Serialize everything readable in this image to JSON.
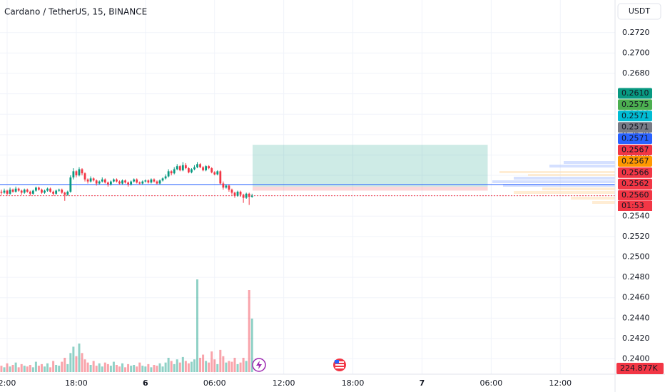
{
  "chart_data": {
    "type": "candlestick",
    "title": "Cardano / TetherUS, 15, BINANCE",
    "currency": "USDT",
    "up_color": "#089981",
    "down_color": "#f23645",
    "xlim": [
      -0.62,
      52.75
    ],
    "xticks": [
      {
        "value": 0,
        "label": "2:00"
      },
      {
        "value": 6,
        "label": "18:00"
      },
      {
        "value": 12,
        "label": "6"
      },
      {
        "value": 18,
        "label": "06:00"
      },
      {
        "value": 24,
        "label": "12:00"
      },
      {
        "value": 30,
        "label": "18:00"
      },
      {
        "value": 36,
        "label": "7"
      },
      {
        "value": 42,
        "label": "06:00"
      },
      {
        "value": 48,
        "label": "12:00"
      }
    ],
    "ylim": [
      0.2385,
      0.2752
    ],
    "yticks": [
      {
        "value": 0.272,
        "label": "0.2720"
      },
      {
        "value": 0.27,
        "label": "0.2700"
      },
      {
        "value": 0.268,
        "label": "0.2680"
      },
      {
        "value": 0.266,
        "label": "0.2660"
      },
      {
        "value": 0.264,
        "label": "0.2640"
      },
      {
        "value": 0.262,
        "label": "0.2620"
      },
      {
        "value": 0.26,
        "label": "0.2600"
      },
      {
        "value": 0.258,
        "label": "0.2580"
      },
      {
        "value": 0.256,
        "label": "0.2560"
      },
      {
        "value": 0.254,
        "label": "0.2540"
      },
      {
        "value": 0.252,
        "label": "0.2520"
      },
      {
        "value": 0.25,
        "label": "0.2500"
      },
      {
        "value": 0.248,
        "label": "0.2480"
      },
      {
        "value": 0.246,
        "label": "0.2460"
      },
      {
        "value": 0.244,
        "label": "0.2440"
      },
      {
        "value": 0.242,
        "label": "0.2420"
      },
      {
        "value": 0.24,
        "label": "0.2400"
      }
    ],
    "grid": true,
    "volume_ylim": [
      0,
      23490
    ],
    "x": [
      -0.5,
      -0.25,
      0,
      0.25,
      0.5,
      0.75,
      1,
      1.25,
      1.5,
      1.75,
      2,
      2.25,
      2.5,
      2.75,
      3,
      3.25,
      3.5,
      3.75,
      4,
      4.25,
      4.5,
      4.75,
      5,
      5.25,
      5.5,
      5.75,
      6,
      6.25,
      6.5,
      6.75,
      7,
      7.25,
      7.5,
      7.75,
      8,
      8.25,
      8.5,
      8.75,
      9,
      9.25,
      9.5,
      9.75,
      10,
      10.25,
      10.5,
      10.75,
      11,
      11.25,
      11.5,
      11.75,
      12,
      12.25,
      12.5,
      12.75,
      13,
      13.25,
      13.5,
      13.75,
      14,
      14.25,
      14.5,
      14.75,
      15,
      15.25,
      15.5,
      15.75,
      16,
      16.25,
      16.5,
      16.75,
      17,
      17.25,
      17.5,
      17.75,
      18,
      18.25,
      18.5,
      18.75,
      19,
      19.25,
      19.5,
      19.75,
      20,
      20.25,
      20.5,
      20.75,
      21,
      21.25
    ],
    "open": [
      0.2564,
      0.2563,
      0.2565,
      0.2562,
      0.2566,
      0.2564,
      0.2567,
      0.2565,
      0.2563,
      0.2566,
      0.2564,
      0.2562,
      0.2565,
      0.2568,
      0.2566,
      0.2563,
      0.2565,
      0.2567,
      0.2564,
      0.2562,
      0.2565,
      0.2566,
      0.2563,
      0.2561,
      0.2564,
      0.2578,
      0.2584,
      0.258,
      0.2586,
      0.2582,
      0.2576,
      0.2574,
      0.2577,
      0.2575,
      0.2572,
      0.2574,
      0.2576,
      0.2573,
      0.2571,
      0.2574,
      0.2576,
      0.2574,
      0.2572,
      0.2575,
      0.2573,
      0.2571,
      0.2574,
      0.2576,
      0.2573,
      0.2572,
      0.2574,
      0.2575,
      0.2573,
      0.2576,
      0.2574,
      0.2572,
      0.2575,
      0.2577,
      0.2579,
      0.2584,
      0.2582,
      0.2586,
      0.2589,
      0.2585,
      0.259,
      0.2587,
      0.2583,
      0.2586,
      0.2588,
      0.2591,
      0.2588,
      0.2585,
      0.2589,
      0.2587,
      0.2583,
      0.2581,
      0.2584,
      0.2572,
      0.2568,
      0.257,
      0.2566,
      0.2563,
      0.256,
      0.2564,
      0.2561,
      0.2558,
      0.2562,
      0.2559
    ],
    "high": [
      0.2566,
      0.2567,
      0.2566,
      0.2568,
      0.2567,
      0.2569,
      0.2568,
      0.2566,
      0.2567,
      0.2567,
      0.2565,
      0.2566,
      0.2569,
      0.2569,
      0.2567,
      0.2566,
      0.2568,
      0.2568,
      0.2565,
      0.2566,
      0.2567,
      0.2567,
      0.2564,
      0.2565,
      0.258,
      0.2587,
      0.2585,
      0.2588,
      0.2587,
      0.2583,
      0.2577,
      0.2579,
      0.2578,
      0.2576,
      0.2575,
      0.2578,
      0.2577,
      0.2574,
      0.2575,
      0.2577,
      0.2577,
      0.2575,
      0.2576,
      0.2576,
      0.2574,
      0.2575,
      0.2577,
      0.2577,
      0.2574,
      0.2575,
      0.2576,
      0.2576,
      0.2577,
      0.2577,
      0.2575,
      0.2576,
      0.2578,
      0.2581,
      0.2586,
      0.2585,
      0.2588,
      0.2591,
      0.259,
      0.2593,
      0.2592,
      0.2588,
      0.2587,
      0.259,
      0.2593,
      0.2592,
      0.2589,
      0.259,
      0.259,
      0.2588,
      0.2584,
      0.2585,
      0.2585,
      0.2574,
      0.2571,
      0.2571,
      0.2567,
      0.2564,
      0.2565,
      0.2565,
      0.2562,
      0.2563,
      0.2563,
      0.2562
    ],
    "low": [
      0.2561,
      0.2562,
      0.256,
      0.2561,
      0.2563,
      0.2563,
      0.2564,
      0.2561,
      0.2562,
      0.2563,
      0.256,
      0.2561,
      0.2564,
      0.2565,
      0.2562,
      0.2562,
      0.2564,
      0.2563,
      0.256,
      0.2561,
      0.2564,
      0.2562,
      0.2555,
      0.256,
      0.2563,
      0.2576,
      0.2578,
      0.2579,
      0.258,
      0.2574,
      0.2572,
      0.2573,
      0.2574,
      0.257,
      0.2571,
      0.2573,
      0.2572,
      0.2569,
      0.257,
      0.2573,
      0.2573,
      0.2571,
      0.2571,
      0.2572,
      0.2569,
      0.257,
      0.2573,
      0.2572,
      0.2571,
      0.2571,
      0.2573,
      0.2572,
      0.2572,
      0.2573,
      0.2571,
      0.2571,
      0.2574,
      0.2576,
      0.2578,
      0.258,
      0.2581,
      0.2585,
      0.2584,
      0.2584,
      0.2586,
      0.2582,
      0.2582,
      0.2585,
      0.2587,
      0.2587,
      0.2584,
      0.2584,
      0.2586,
      0.2582,
      0.258,
      0.258,
      0.2571,
      0.2566,
      0.2567,
      0.2564,
      0.2561,
      0.2558,
      0.2559,
      0.2559,
      0.2553,
      0.2557,
      0.2551,
      0.2558
    ],
    "close": [
      0.2563,
      0.2565,
      0.2562,
      0.2566,
      0.2564,
      0.2567,
      0.2565,
      0.2563,
      0.2566,
      0.2564,
      0.2562,
      0.2565,
      0.2568,
      0.2566,
      0.2563,
      0.2565,
      0.2567,
      0.2564,
      0.2562,
      0.2565,
      0.2566,
      0.2563,
      0.2561,
      0.2564,
      0.2578,
      0.2584,
      0.258,
      0.2586,
      0.2582,
      0.2576,
      0.2574,
      0.2577,
      0.2575,
      0.2572,
      0.2574,
      0.2576,
      0.2573,
      0.2571,
      0.2574,
      0.2576,
      0.2574,
      0.2572,
      0.2575,
      0.2573,
      0.2571,
      0.2574,
      0.2576,
      0.2573,
      0.2572,
      0.2574,
      0.2575,
      0.2573,
      0.2576,
      0.2574,
      0.2572,
      0.2575,
      0.2577,
      0.2579,
      0.2584,
      0.2582,
      0.2586,
      0.2589,
      0.2585,
      0.259,
      0.2587,
      0.2583,
      0.2586,
      0.2588,
      0.2591,
      0.2588,
      0.2585,
      0.2589,
      0.2587,
      0.2583,
      0.2581,
      0.2584,
      0.2572,
      0.2568,
      0.257,
      0.2566,
      0.2563,
      0.256,
      0.2564,
      0.2561,
      0.2558,
      0.2562,
      0.2559,
      0.256
    ],
    "volume": [
      400,
      300,
      550,
      350,
      450,
      600,
      300,
      500,
      400,
      350,
      450,
      300,
      650,
      400,
      500,
      350,
      550,
      300,
      700,
      450,
      400,
      650,
      900,
      500,
      1200,
      1600,
      1000,
      1800,
      1200,
      800,
      600,
      450,
      700,
      400,
      550,
      350,
      600,
      500,
      400,
      650,
      450,
      350,
      550,
      300,
      500,
      400,
      450,
      350,
      600,
      400,
      350,
      500,
      300,
      450,
      400,
      550,
      350,
      600,
      900,
      700,
      500,
      800,
      600,
      950,
      700,
      550,
      650,
      800,
      5850,
      900,
      1100,
      700,
      600,
      1300,
      800,
      500,
      1400,
      1000,
      600,
      700,
      650,
      900,
      500,
      600,
      900,
      700,
      5175,
      3375
    ],
    "volume_label": "224.877K",
    "lines": [
      {
        "price": 0.2571,
        "color": "#2962ff"
      },
      {
        "price": 0.256,
        "color": "#f23645"
      }
    ],
    "position": {
      "target": 0.261,
      "entry": 0.2569,
      "stop": 0.2565,
      "x_start": 21.3,
      "x_end": 41.7
    },
    "price_labels": [
      {
        "label": "0.2610",
        "color": "#089981"
      },
      {
        "label": "0.2575",
        "color": "#4caf50"
      },
      {
        "label": "0.2571",
        "color": "#00bcd4"
      },
      {
        "label": "0.2571",
        "color": "#787b86"
      },
      {
        "label": "0.2571",
        "color": "#2962ff"
      },
      {
        "label": "0.2567",
        "color": "#f23645"
      },
      {
        "label": "0.2567",
        "color": "#ff9800"
      },
      {
        "label": "0.2566",
        "color": "#f23645"
      },
      {
        "label": "0.2562",
        "color": "#f23645"
      },
      {
        "label": "0.2560",
        "color": "#f23645"
      }
    ],
    "countdown": "01:53"
  }
}
